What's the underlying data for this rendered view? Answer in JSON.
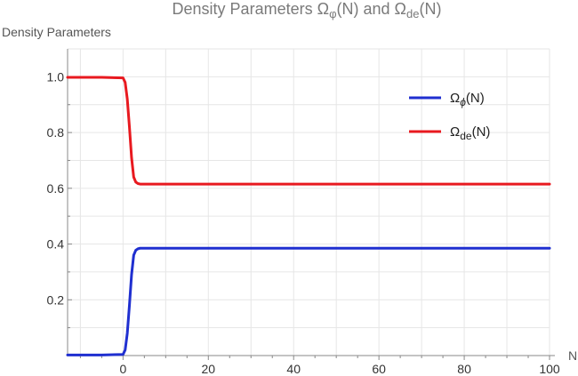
{
  "chart_data": {
    "type": "line",
    "title_main": "Density Parameters ",
    "title_omega1": "Ω",
    "title_sub1": "φ",
    "title_mid": "(N) and ",
    "title_omega2": "Ω",
    "title_sub2": "de",
    "title_end": "(N)",
    "ylabel": "Density Parameters",
    "xlabel": "N",
    "xlim": [
      -13,
      100
    ],
    "ylim": [
      0,
      1.1
    ],
    "x_ticks": [
      0,
      20,
      40,
      60,
      80,
      100
    ],
    "y_ticks": [
      0.2,
      0.4,
      0.6,
      0.8,
      1.0
    ],
    "x_tick_labels": [
      "0",
      "20",
      "40",
      "60",
      "80",
      "100"
    ],
    "y_tick_labels": [
      "0.2",
      "0.4",
      "0.6",
      "0.8",
      "1.0"
    ],
    "grid": true,
    "legend_position": "top-right",
    "series": [
      {
        "name_omega": "Ω",
        "name_sub": "ϕ",
        "name_suffix": "(N)",
        "color": "#1f2fd0",
        "x": [
          -13,
          -5,
          0,
          0.5,
          1,
          1.5,
          2,
          2.5,
          3,
          3.5,
          4,
          6,
          10,
          20,
          40,
          60,
          80,
          100
        ],
        "y": [
          0.002,
          0.002,
          0.004,
          0.02,
          0.08,
          0.18,
          0.29,
          0.36,
          0.378,
          0.383,
          0.385,
          0.385,
          0.385,
          0.385,
          0.385,
          0.385,
          0.385,
          0.385
        ]
      },
      {
        "name_omega": "Ω",
        "name_sub": "de",
        "name_suffix": "(N)",
        "color": "#e8191f",
        "x": [
          -13,
          -5,
          0,
          0.5,
          1,
          1.5,
          2,
          2.5,
          3,
          3.5,
          4,
          6,
          10,
          20,
          40,
          60,
          80,
          100
        ],
        "y": [
          0.998,
          0.998,
          0.996,
          0.98,
          0.92,
          0.82,
          0.71,
          0.64,
          0.622,
          0.617,
          0.615,
          0.615,
          0.615,
          0.615,
          0.615,
          0.615,
          0.615,
          0.615
        ]
      }
    ]
  }
}
